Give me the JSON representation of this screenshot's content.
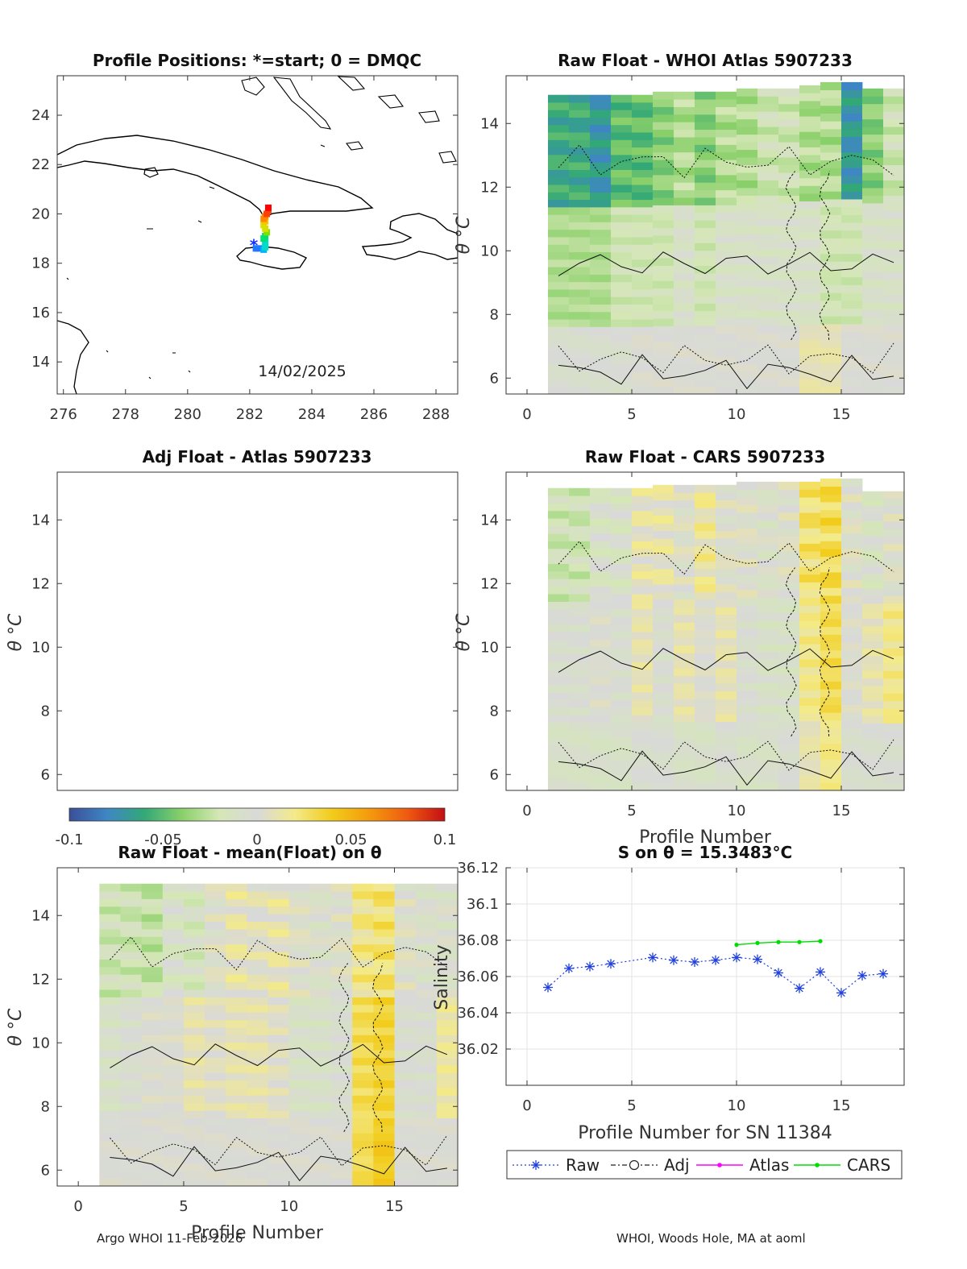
{
  "footer": {
    "left": "Argo WHOI 11-Feb-2026",
    "right": "WHOI, Woods Hole, MA at aoml"
  },
  "colors": {
    "raw_series": "#1f3fe0",
    "atlas_series": "#ff00ff",
    "cars_series": "#00dd00",
    "contour": "#111111",
    "nodata": "#d9d9d9"
  },
  "colorbar": {
    "ticks": [
      "-0.1",
      "-0.05",
      "0",
      "0.05",
      "0.1"
    ],
    "range": [
      -0.1,
      0.1
    ],
    "stops": [
      "#3a4f98",
      "#3e86c4",
      "#33a877",
      "#8ad06a",
      "#d5e7b6",
      "#d9d9d9",
      "#f3ea8a",
      "#f2cc1a",
      "#f49a0d",
      "#ef5a10",
      "#c40e14"
    ]
  },
  "chart_data": [
    {
      "id": "positions",
      "type": "scatter",
      "title": "Profile Positions: *=start; 0 = DMQC",
      "xlabel": "",
      "ylabel": "",
      "xlim": [
        275.8,
        288.7
      ],
      "ylim": [
        12.7,
        25.6
      ],
      "xticks": [
        "276",
        "278",
        "280",
        "282",
        "284",
        "286",
        "288"
      ],
      "yticks": [
        "14",
        "16",
        "18",
        "20",
        "22",
        "24"
      ],
      "annotation": "14/02/2025",
      "x": [
        282.1,
        282.2,
        282.3,
        282.45,
        282.5,
        282.5,
        282.45,
        282.5,
        282.55,
        282.5,
        282.45,
        282.5,
        282.45,
        282.5,
        282.55,
        282.6,
        282.6
      ],
      "y": [
        18.75,
        18.6,
        18.6,
        18.55,
        18.65,
        18.85,
        19.0,
        19.1,
        19.25,
        19.4,
        19.55,
        19.7,
        19.8,
        19.9,
        20.0,
        20.15,
        20.25
      ]
    },
    {
      "id": "raw_atlas",
      "type": "heatmap",
      "title": "Raw Float - WHOI Atlas  5907233",
      "xlabel": "",
      "ylabel": "θ °C",
      "xlim": [
        -1,
        18
      ],
      "ylim": [
        5.5,
        15.5
      ],
      "xticks": [
        "0",
        "5",
        "10",
        "15"
      ],
      "yticks": [
        "6",
        "8",
        "10",
        "12",
        "14"
      ],
      "profiles": [
        1,
        2,
        3,
        4,
        5,
        6,
        7,
        8,
        9,
        10,
        11,
        12,
        13,
        14,
        15,
        16,
        17
      ],
      "top_theta": [
        14.9,
        14.9,
        14.9,
        14.9,
        14.9,
        15.0,
        15.0,
        15.0,
        15.0,
        15.1,
        15.1,
        15.1,
        15.2,
        15.3,
        15.3,
        15.1,
        15.1
      ],
      "upper_anomaly": [
        -0.06,
        -0.06,
        -0.07,
        -0.05,
        -0.05,
        -0.04,
        -0.03,
        -0.04,
        -0.03,
        -0.03,
        -0.02,
        -0.02,
        -0.03,
        -0.03,
        -0.07,
        -0.04,
        -0.02
      ],
      "mid_anomaly": [
        -0.03,
        -0.03,
        -0.03,
        -0.02,
        -0.02,
        -0.02,
        -0.01,
        -0.02,
        -0.01,
        -0.01,
        -0.01,
        -0.01,
        -0.01,
        -0.02,
        -0.02,
        -0.01,
        -0.01
      ],
      "deep_anomaly": [
        -0.005,
        -0.005,
        -0.005,
        -0.005,
        0,
        0,
        0,
        0,
        0,
        0,
        0,
        0,
        0.01,
        0.01,
        0,
        0,
        0
      ]
    },
    {
      "id": "adj_atlas",
      "type": "heatmap",
      "title": "Adj Float - Atlas  5907233",
      "xlabel": "",
      "ylabel": "θ °C",
      "xlim": [
        -1,
        18
      ],
      "ylim": [
        5.5,
        15.5
      ],
      "xticks": [],
      "yticks": [
        "6",
        "8",
        "10",
        "12",
        "14"
      ]
    },
    {
      "id": "raw_cars",
      "type": "heatmap",
      "title": "Raw Float - CARS  5907233",
      "xlabel": "Profile Number",
      "ylabel": "θ °C",
      "xlim": [
        -1,
        18
      ],
      "ylim": [
        5.5,
        15.5
      ],
      "xticks": [
        "0",
        "5",
        "10",
        "15"
      ],
      "yticks": [
        "6",
        "8",
        "10",
        "12",
        "14"
      ],
      "profiles": [
        1,
        2,
        3,
        4,
        5,
        6,
        7,
        8,
        9,
        10,
        11,
        12,
        13,
        14,
        15,
        16,
        17
      ],
      "top_theta": [
        15.0,
        15.0,
        15.0,
        15.0,
        15.0,
        15.1,
        15.1,
        15.1,
        15.1,
        15.2,
        15.2,
        15.2,
        15.2,
        15.3,
        15.3,
        14.9,
        14.9
      ],
      "upper_anomaly": [
        -0.02,
        -0.02,
        -0.01,
        -0.01,
        0.01,
        0.01,
        0,
        0.015,
        0,
        0,
        -0.005,
        0,
        0.025,
        0.03,
        0,
        -0.01,
        0
      ],
      "mid_anomaly": [
        -0.005,
        -0.005,
        0,
        -0.005,
        0.01,
        -0.005,
        0.01,
        0,
        0.01,
        -0.005,
        -0.01,
        -0.01,
        0.02,
        0.03,
        0,
        0.01,
        0.02
      ],
      "deep_anomaly": [
        -0.01,
        -0.01,
        -0.01,
        -0.01,
        -0.005,
        -0.005,
        -0.01,
        -0.01,
        -0.005,
        -0.01,
        -0.01,
        -0.005,
        0.01,
        0.02,
        -0.005,
        -0.005,
        -0.005
      ]
    },
    {
      "id": "raw_mean",
      "type": "heatmap",
      "title": "Raw Float - mean(Float) on θ",
      "xlabel": "Profile Number",
      "ylabel": "θ °C",
      "xlim": [
        -1,
        18
      ],
      "ylim": [
        5.5,
        15.5
      ],
      "xticks": [
        "0",
        "5",
        "10",
        "15"
      ],
      "yticks": [
        "6",
        "8",
        "10",
        "12",
        "14"
      ],
      "profiles": [
        1,
        2,
        3,
        4,
        5,
        6,
        7,
        8,
        9,
        10,
        11,
        12,
        13,
        14,
        15,
        16,
        17
      ],
      "top_theta": [
        15.0,
        15.0,
        15.0,
        15.0,
        15.0,
        15.0,
        15.0,
        15.0,
        15.0,
        15.0,
        15.0,
        15.0,
        15.0,
        15.0,
        15.0,
        15.0,
        15.0
      ],
      "upper_anomaly": [
        -0.02,
        -0.02,
        -0.025,
        -0.01,
        -0.015,
        0,
        0.01,
        0.005,
        0.01,
        0,
        -0.005,
        0,
        0.02,
        0.025,
        0,
        -0.005,
        -0.005
      ],
      "mid_anomaly": [
        -0.01,
        -0.005,
        0,
        0,
        0.01,
        0.005,
        0.01,
        0.01,
        0.005,
        -0.01,
        -0.01,
        -0.005,
        0.03,
        0.035,
        -0.005,
        -0.005,
        0.015
      ],
      "deep_anomaly": [
        0,
        0,
        0,
        0,
        0,
        0,
        0,
        0,
        0,
        0,
        0,
        0,
        0.03,
        0.04,
        0,
        0,
        0
      ]
    },
    {
      "id": "salinity",
      "type": "line",
      "title": "S on θ = 15.3483°C",
      "xlabel": "Profile Number for SN 11384",
      "ylabel": "Salinity",
      "xlim": [
        -1,
        18
      ],
      "ylim": [
        36.0,
        36.12
      ],
      "xticks": [
        "0",
        "5",
        "10",
        "15"
      ],
      "yticks": [
        "36.02",
        "36.04",
        "36.06",
        "36.08",
        "36.1",
        "36.12"
      ],
      "series": [
        {
          "name": "Raw",
          "x": [
            1,
            2,
            3,
            4,
            6,
            7,
            8,
            9,
            10,
            11,
            12,
            13,
            14,
            15,
            16,
            17
          ],
          "values": [
            36.054,
            36.0645,
            36.0655,
            36.067,
            36.0705,
            36.069,
            36.068,
            36.069,
            36.0705,
            36.0695,
            36.062,
            36.0535,
            36.0625,
            36.051,
            36.0605,
            36.0615
          ]
        },
        {
          "name": "Adj",
          "x": [],
          "values": []
        },
        {
          "name": "Atlas",
          "x": [],
          "values": []
        },
        {
          "name": "CARS",
          "x": [
            10,
            11,
            12,
            13,
            14
          ],
          "values": [
            36.0775,
            36.0785,
            36.079,
            36.079,
            36.0795
          ]
        }
      ]
    }
  ]
}
